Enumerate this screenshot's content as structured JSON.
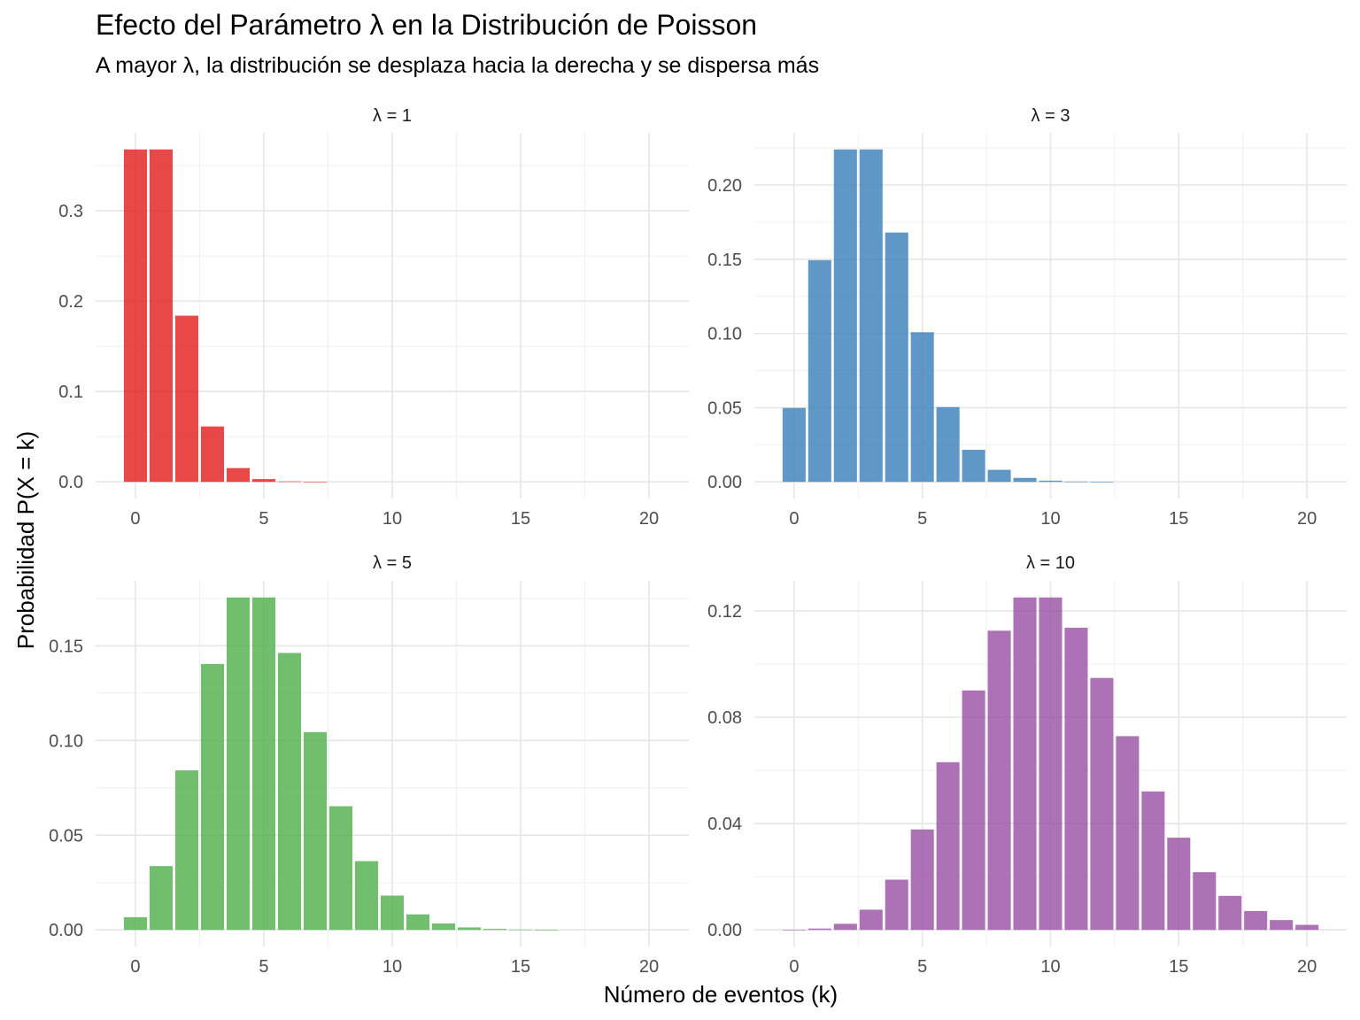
{
  "title": "Efecto del Parámetro λ en la Distribución de Poisson",
  "subtitle": "A mayor λ, la distribución se desplaza hacia la derecha y se dispersa más",
  "chart_data": {
    "type": "bar",
    "xlabel": "Número de eventos (k)",
    "ylabel": "Probabilidad P(X = k)",
    "x": [
      0,
      1,
      2,
      3,
      4,
      5,
      6,
      7,
      8,
      9,
      10,
      11,
      12,
      13,
      14,
      15,
      16,
      17,
      18,
      19,
      20
    ],
    "xlim": [
      -0.5,
      20.5
    ],
    "x_ticks": [
      0,
      5,
      10,
      15,
      20
    ],
    "grid": true,
    "legend": "none",
    "panels": [
      {
        "label": "λ = 1",
        "color": "#E41A1C",
        "ylim": [
          0,
          0.3679
        ],
        "y_ticks": [
          0,
          0.1,
          0.2,
          0.3
        ],
        "y_tick_labels": [
          "0.0",
          "0.1",
          "0.2",
          "0.3"
        ],
        "values": [
          0.3679,
          0.3679,
          0.1839,
          0.0613,
          0.0153,
          0.0031,
          0.0005,
          0.0001,
          0,
          0,
          0,
          0,
          0,
          0,
          0,
          0,
          0,
          0,
          0,
          0,
          0
        ]
      },
      {
        "label": "λ = 3",
        "color": "#377EB8",
        "ylim": [
          0,
          0.224
        ],
        "y_ticks": [
          0,
          0.05,
          0.1,
          0.15,
          0.2
        ],
        "y_tick_labels": [
          "0.00",
          "0.05",
          "0.10",
          "0.15",
          "0.20"
        ],
        "values": [
          0.0498,
          0.1494,
          0.224,
          0.224,
          0.168,
          0.1008,
          0.0504,
          0.0216,
          0.0081,
          0.0027,
          0.0008,
          0.0002,
          5e-05,
          0,
          0,
          0,
          0,
          0,
          0,
          0,
          0
        ]
      },
      {
        "label": "λ = 5",
        "color": "#4DAF4A",
        "ylim": [
          0,
          0.1755
        ],
        "y_ticks": [
          0,
          0.05,
          0.1,
          0.15
        ],
        "y_tick_labels": [
          "0.00",
          "0.05",
          "0.10",
          "0.15"
        ],
        "values": [
          0.0067,
          0.0337,
          0.0842,
          0.1404,
          0.1755,
          0.1755,
          0.1462,
          0.1044,
          0.0653,
          0.0363,
          0.0181,
          0.0082,
          0.0034,
          0.0013,
          0.0005,
          0.0002,
          5e-05,
          0,
          0,
          0,
          0
        ]
      },
      {
        "label": "λ = 10",
        "color": "#984EA3",
        "ylim": [
          0,
          0.1251
        ],
        "y_ticks": [
          0,
          0.04,
          0.08,
          0.12
        ],
        "y_tick_labels": [
          "0.00",
          "0.04",
          "0.08",
          "0.12"
        ],
        "values": [
          5e-05,
          0.0005,
          0.0023,
          0.0076,
          0.0189,
          0.0378,
          0.0631,
          0.0901,
          0.1126,
          0.1251,
          0.1251,
          0.1137,
          0.0948,
          0.0729,
          0.0521,
          0.0347,
          0.0217,
          0.0128,
          0.0071,
          0.0037,
          0.0019
        ]
      }
    ]
  }
}
